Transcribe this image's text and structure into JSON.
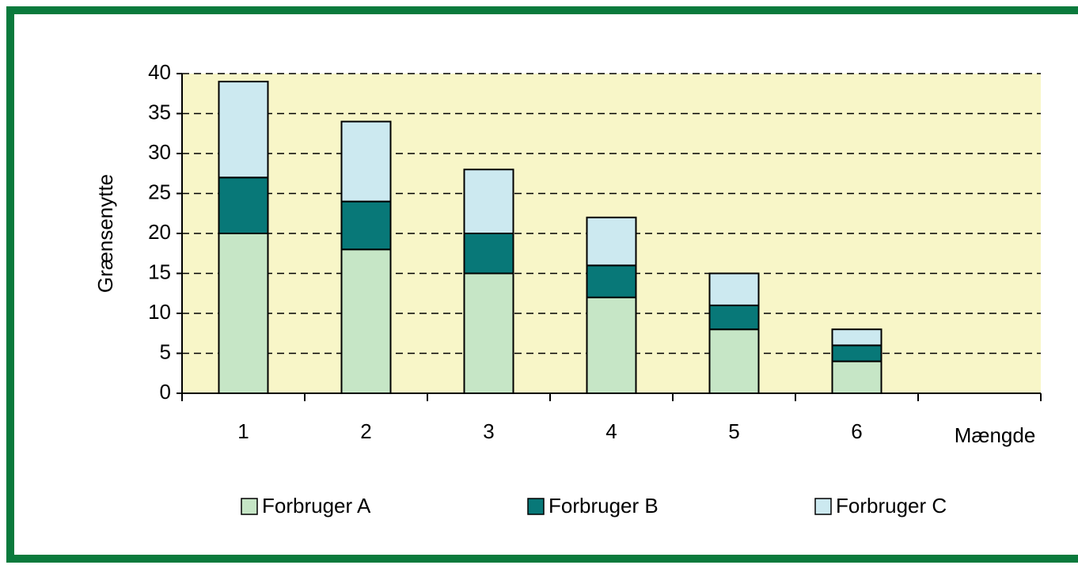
{
  "chart_data": {
    "type": "stacked_bar",
    "xlabel": "Mængde",
    "ylabel": "Grænsenytte",
    "categories": [
      "1",
      "2",
      "3",
      "4",
      "5",
      "6",
      null
    ],
    "series": [
      {
        "name": "Forbruger A",
        "color": "#c6e6c6",
        "values": [
          20,
          18,
          15,
          12,
          8,
          4,
          null
        ]
      },
      {
        "name": "Forbruger B",
        "color": "#087878",
        "values": [
          7,
          6,
          5,
          4,
          3,
          2,
          null
        ]
      },
      {
        "name": "Forbruger C",
        "color": "#cce9f0",
        "values": [
          12,
          10,
          8,
          6,
          4,
          2,
          null
        ]
      }
    ],
    "ylim": [
      0,
      40
    ],
    "yticks": [
      0,
      5,
      10,
      15,
      20,
      25,
      30,
      35,
      40
    ],
    "grid": true,
    "legend": "bottom",
    "plot_background": "#f8f6c8"
  }
}
